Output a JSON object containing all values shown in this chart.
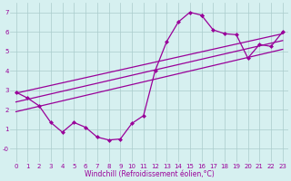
{
  "bg_color": "#d6f0f0",
  "line_color": "#990099",
  "grid_color": "#aacccc",
  "xlabel": "Windchill (Refroidissement éolien,°C)",
  "xlabel_color": "#990099",
  "ylabel_color": "#990099",
  "xlim": [
    -0.5,
    23.5
  ],
  "ylim": [
    -0.7,
    7.5
  ],
  "xticks": [
    0,
    1,
    2,
    3,
    4,
    5,
    6,
    7,
    8,
    9,
    10,
    11,
    12,
    13,
    14,
    15,
    16,
    17,
    18,
    19,
    20,
    21,
    22,
    23
  ],
  "yticks": [
    0,
    1,
    2,
    3,
    4,
    5,
    6,
    7
  ],
  "ytick_labels": [
    "-0",
    "1",
    "2",
    "3",
    "4",
    "5",
    "6",
    "7"
  ],
  "curve1_x": [
    0,
    1,
    2,
    3,
    4,
    5,
    6,
    7,
    8,
    9,
    10,
    11,
    12,
    13,
    14,
    15,
    16
  ],
  "curve1_y": [
    2.9,
    2.6,
    2.2,
    1.35,
    0.85,
    1.35,
    1.1,
    0.6,
    0.45,
    0.5,
    1.3,
    1.7,
    4.0,
    5.5,
    6.5,
    7.0,
    6.85
  ],
  "curve2_x": [
    16,
    17,
    18,
    19,
    20,
    21,
    22,
    23
  ],
  "curve2_y": [
    6.85,
    6.1,
    5.9,
    5.85,
    4.65,
    5.35,
    5.25,
    6.0
  ],
  "line1_x": [
    0,
    23
  ],
  "line1_y": [
    2.85,
    5.9
  ],
  "line2_x": [
    0,
    23
  ],
  "line2_y": [
    2.4,
    5.55
  ],
  "line3_x": [
    0,
    23
  ],
  "line3_y": [
    1.9,
    5.1
  ],
  "marker": "D",
  "markersize": 2.5,
  "linewidth": 0.9,
  "tick_fontsize": 5.0,
  "xlabel_fontsize": 5.5
}
